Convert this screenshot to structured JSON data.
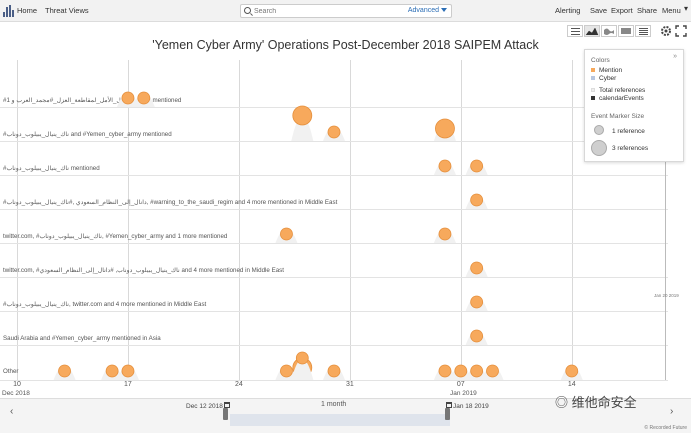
{
  "nav": {
    "home": "Home",
    "threat_views": "Threat Views",
    "search_placeholder": "Search",
    "advanced": "Advanced",
    "alerting": "Alerting",
    "save": "Save",
    "export": "Export",
    "share": "Share",
    "menu": "Menu"
  },
  "icons": [
    "list-view-icon",
    "timeline-view-icon",
    "map-view-icon",
    "table-view-icon",
    "detail-view-icon",
    "gear-icon",
    "fullscreen-icon"
  ],
  "title": "'Yemen Cyber Army' Operations Post-December 2018 SAIPEM Attack",
  "legend": {
    "colors_title": "Colors",
    "mention": "Mention",
    "cyber": "Cyber",
    "total_references": "Total references",
    "calendar_events": "calendarEvents",
    "marker_size_title": "Event Marker Size",
    "one_ref": "1 reference",
    "three_ref": "3 references",
    "collapse": "»",
    "mention_color": "#f7a95c",
    "cyber_color": "#b8c7e0"
  },
  "marker_date": "Jan 20 2019",
  "axis": {
    "ticks": [
      "10",
      "17",
      "24",
      "31",
      "07",
      "14"
    ],
    "months": [
      "Dec 2018",
      "Jan 2019"
    ]
  },
  "range": {
    "start": "Dec 12 2018",
    "end": "Jan 18 2019",
    "span": "1 month"
  },
  "watermark": "维他命安全",
  "copyright": "© Recorded Future",
  "chart_data": {
    "type": "scatter",
    "title": "'Yemen Cyber Army' Operations Post-December 2018 SAIPEM Attack",
    "x_range": [
      "2018-12-09",
      "2019-01-19"
    ],
    "rows": [
      {
        "label": "#الماتدل_الأمل_لمقاطعة_العزل_#مجمد_العرب و 1 more mentioned",
        "points": [
          {
            "date": "2018-12-17",
            "refs": 1
          },
          {
            "date": "2018-12-18",
            "refs": 1
          }
        ]
      },
      {
        "label": "#ناك_ينيال_يبيلوب_دوناب and #Yemen_cyber_army mentioned",
        "points": [
          {
            "date": "2018-12-28",
            "refs": 1
          },
          {
            "date": "2018-12-28",
            "refs": 3
          },
          {
            "date": "2018-12-30",
            "refs": 1
          },
          {
            "date": "2019-01-06",
            "refs": 3
          }
        ]
      },
      {
        "label": "#ناك_ينيال_يبيلوب_دوناب mentioned",
        "points": [
          {
            "date": "2019-01-06",
            "refs": 1
          },
          {
            "date": "2019-01-08",
            "refs": 1
          }
        ]
      },
      {
        "label": "#دانال_إلى_النظام_السعودي ,#ناك_ينيال_يبيلوب_دوناب, #warning_to_the_saudi_regim and 4 more mentioned in Middle East",
        "points": [
          {
            "date": "2019-01-08",
            "refs": 1
          }
        ]
      },
      {
        "label": "twitter.com, #ناك_ينيال_يبيلوب_دوناب, #Yemen_cyber_army and 1 more mentioned",
        "points": [
          {
            "date": "2018-12-27",
            "refs": 1
          },
          {
            "date": "2019-01-06",
            "refs": 1
          }
        ]
      },
      {
        "label": "twitter.com, #ناك_ينيال_يبيلوب_دوناب, #دانال_إلى_النظام_السعودي and 4 more mentioned in Middle East",
        "points": [
          {
            "date": "2019-01-08",
            "refs": 1
          }
        ]
      },
      {
        "label": "#ناك_ينيال_يبيلوب_دوناب, twitter.com and 4 more mentioned in Middle East",
        "points": [
          {
            "date": "2019-01-08",
            "refs": 1
          }
        ]
      },
      {
        "label": "Saudi Arabia and #Yemen_cyber_army mentioned in Asia",
        "points": [
          {
            "date": "2019-01-08",
            "refs": 1
          }
        ]
      },
      {
        "label": "Other",
        "points": [
          {
            "date": "2018-12-13",
            "refs": 1
          },
          {
            "date": "2018-12-16",
            "refs": 1
          },
          {
            "date": "2018-12-17",
            "refs": 1
          },
          {
            "date": "2018-12-27",
            "refs": 1
          },
          {
            "date": "2018-12-28",
            "refs": 3
          },
          {
            "date": "2018-12-28",
            "refs": 1
          },
          {
            "date": "2018-12-30",
            "refs": 1
          },
          {
            "date": "2019-01-06",
            "refs": 1
          },
          {
            "date": "2019-01-07",
            "refs": 1
          },
          {
            "date": "2019-01-08",
            "refs": 1
          },
          {
            "date": "2019-01-09",
            "refs": 1
          },
          {
            "date": "2019-01-14",
            "refs": 1
          }
        ]
      }
    ]
  }
}
